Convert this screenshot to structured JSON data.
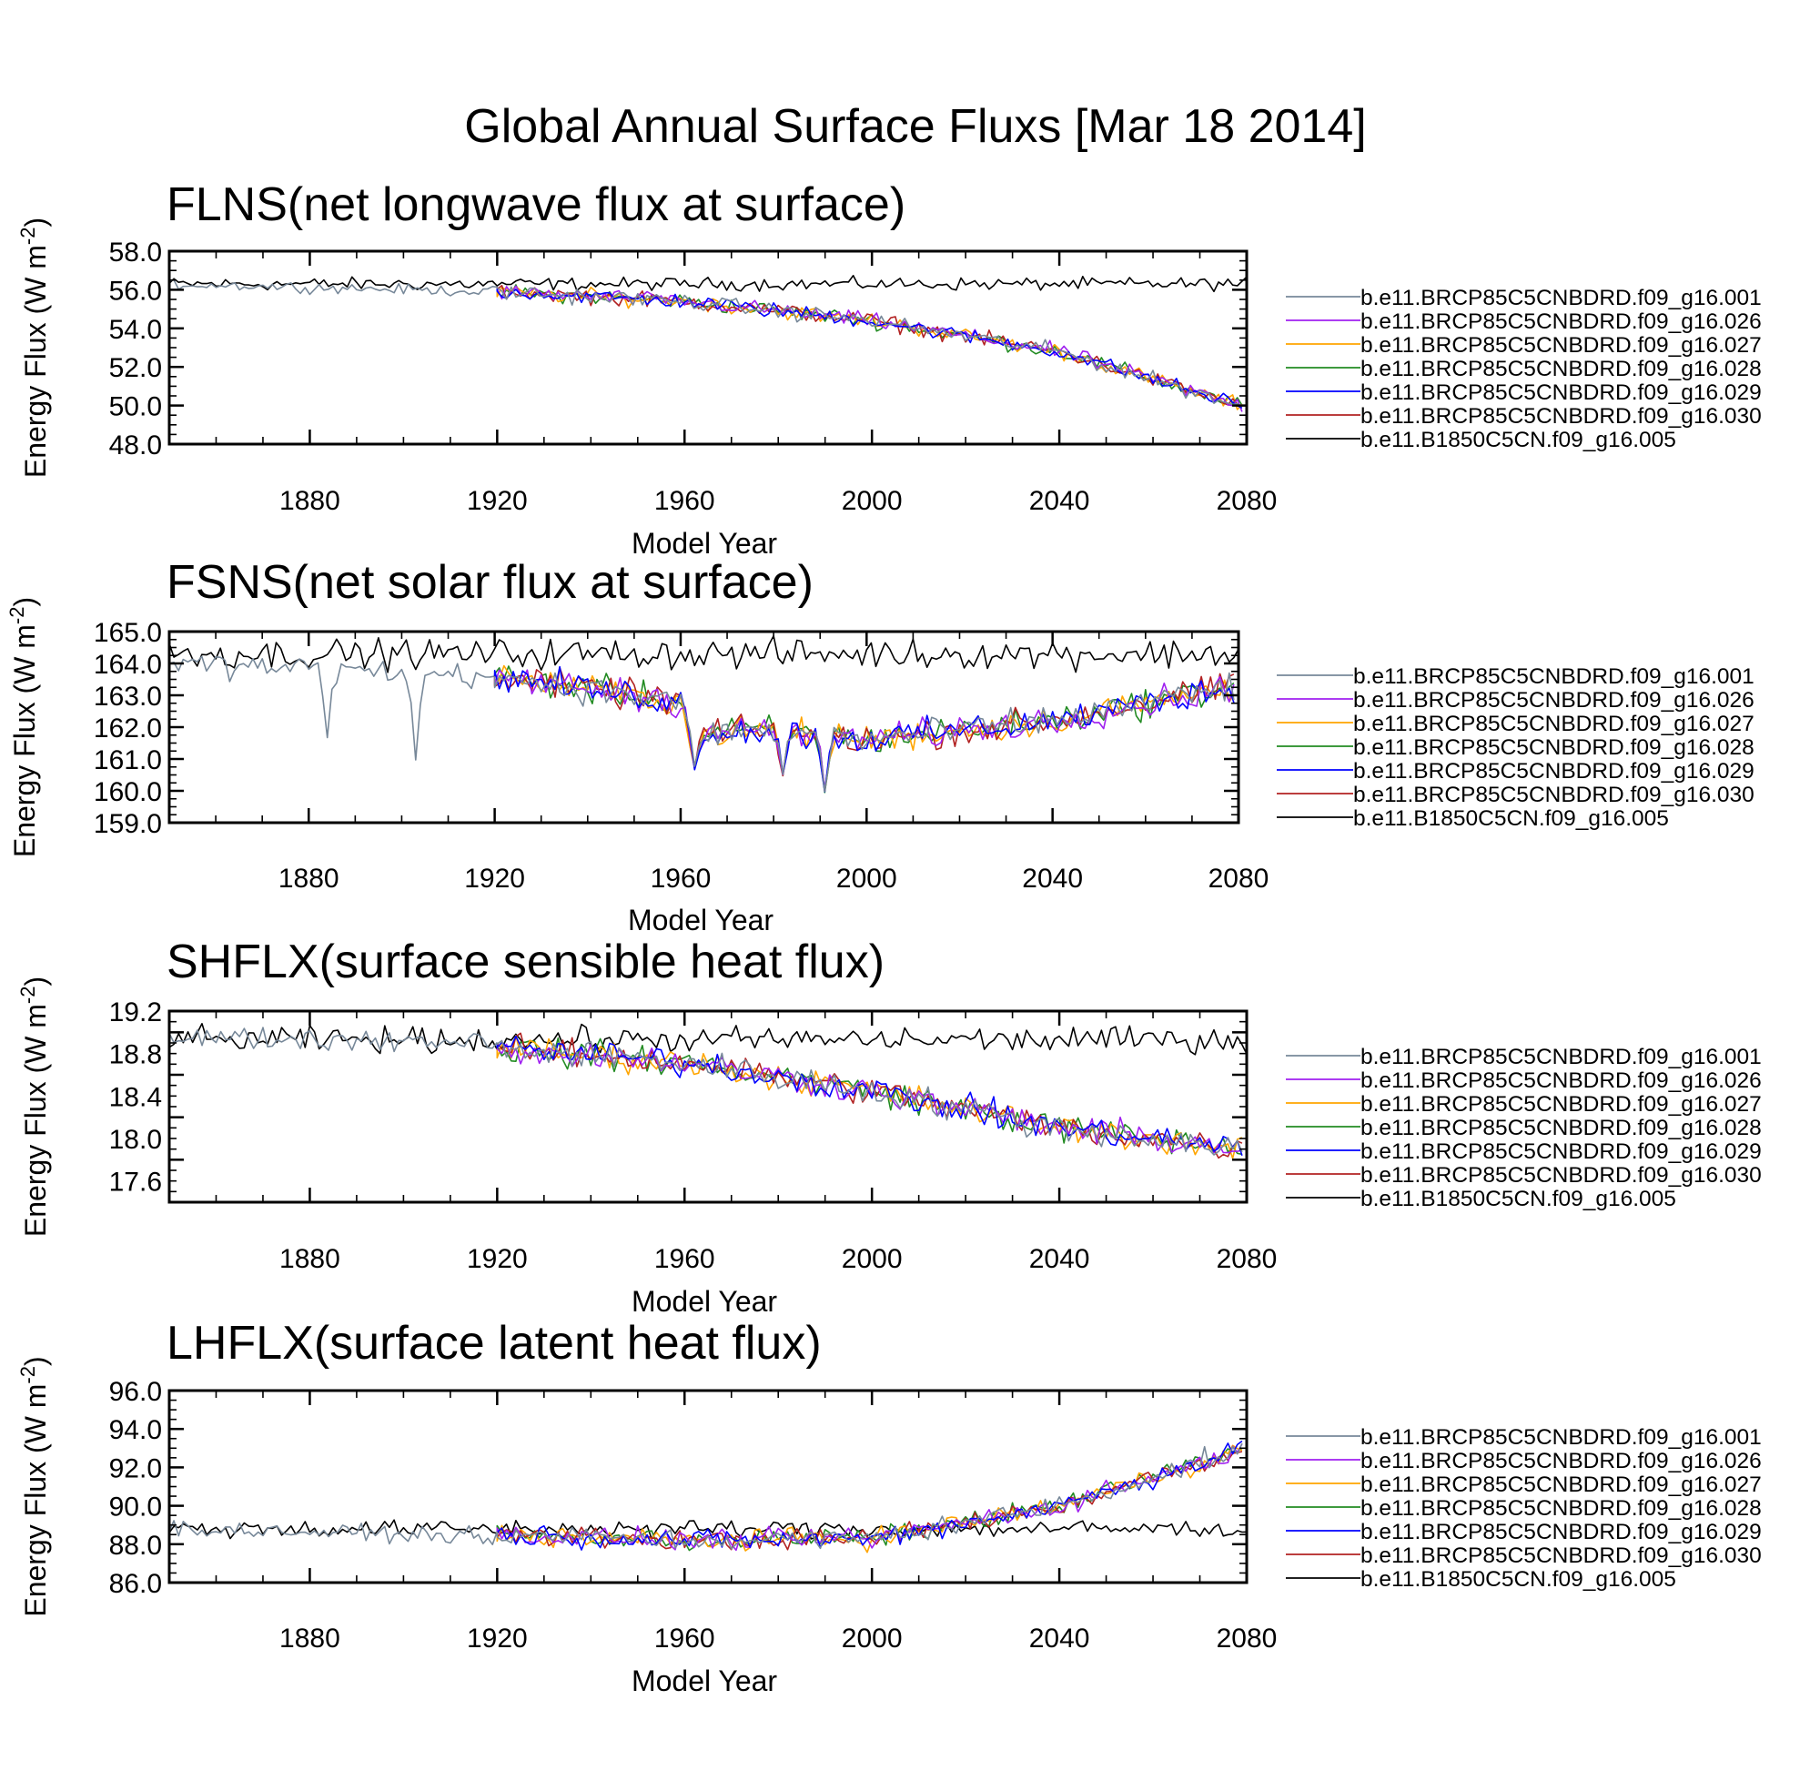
{
  "figure": {
    "title": "Global Annual Surface Fluxs [Mar 18 2014]"
  },
  "legend_entries": [
    {
      "name": "b.e11.BRCP85C5CNBDRD.f09_g16.001",
      "color": "#778899"
    },
    {
      "name": "b.e11.BRCP85C5CNBDRD.f09_g16.026",
      "color": "#a020f0"
    },
    {
      "name": "b.e11.BRCP85C5CNBDRD.f09_g16.027",
      "color": "#ffa500"
    },
    {
      "name": "b.e11.BRCP85C5CNBDRD.f09_g16.028",
      "color": "#228b22"
    },
    {
      "name": "b.e11.BRCP85C5CNBDRD.f09_g16.029",
      "color": "#0000ff"
    },
    {
      "name": "b.e11.BRCP85C5CNBDRD.f09_g16.030",
      "color": "#b22222"
    },
    {
      "name": "b.e11.B1850C5CN.f09_g16.005",
      "color": "#000000"
    }
  ],
  "chart_data": [
    {
      "type": "line",
      "title": "FLNS(net longwave flux at surface)",
      "xlabel": "Model Year",
      "ylabel": "Energy Flux (W m",
      "ylabel_sup": "-2",
      "ylabel_end": ")",
      "xlim": [
        1850,
        2080
      ],
      "ylim": [
        48.0,
        58.0
      ],
      "xticks": [
        1880,
        1920,
        1960,
        2000,
        2040,
        2080
      ],
      "yticks": [
        "58.0",
        "56.0",
        "54.0",
        "52.0",
        "50.0",
        "48.0"
      ],
      "ytick_values": [
        58,
        56,
        54,
        52,
        50,
        48
      ],
      "control": {
        "name": "b.e11.B1850C5CN.f09_g16.005",
        "years": [
          1850,
          2080
        ],
        "mean": [
          56.3,
          56.3
        ],
        "noise": 0.25
      },
      "historical": {
        "name": "b.e11.BRCP85C5CNBDRD.f09_g16.001",
        "years": [
          1850,
          1920
        ],
        "mean": [
          56.3,
          55.9
        ],
        "noise": 0.2
      },
      "ensemble": {
        "years": [
          1920,
          1960,
          2000,
          2040,
          2080
        ],
        "mean": [
          55.9,
          55.4,
          54.4,
          52.8,
          49.9
        ],
        "noise": 0.3
      }
    },
    {
      "type": "line",
      "title": "FSNS(net solar flux at surface)",
      "xlabel": "Model Year",
      "ylabel": "Energy Flux (W m",
      "ylabel_sup": "-2",
      "ylabel_end": ")",
      "xlim": [
        1850,
        2080
      ],
      "ylim": [
        159.0,
        165.0
      ],
      "xticks": [
        1880,
        1920,
        1960,
        2000,
        2040,
        2080
      ],
      "yticks": [
        "165.0",
        "164.0",
        "163.0",
        "162.0",
        "161.0",
        "160.0",
        "159.0"
      ],
      "ytick_values": [
        165,
        164,
        163,
        162,
        161,
        160,
        159
      ],
      "control": {
        "name": "b.e11.B1850C5CN.f09_g16.005",
        "years": [
          1850,
          2080
        ],
        "mean": [
          164.3,
          164.3
        ],
        "noise": 0.35
      },
      "historical": {
        "name": "b.e11.BRCP85C5CNBDRD.f09_g16.001",
        "years": [
          1850,
          1920
        ],
        "mean": [
          164.0,
          163.6
        ],
        "noise": 0.3,
        "dips": [
          [
            1884,
            161.7
          ],
          [
            1903,
            160.9
          ]
        ]
      },
      "ensemble": {
        "years": [
          1920,
          1960,
          1963,
          1980,
          2000,
          2040,
          2080
        ],
        "mean": [
          163.6,
          162.8,
          161.8,
          161.9,
          161.6,
          162.2,
          163.3
        ],
        "noise": 0.35,
        "dips": [
          [
            1963,
            160.7
          ],
          [
            1982,
            160.5
          ],
          [
            1991,
            160.0
          ]
        ]
      }
    },
    {
      "type": "line",
      "title": "SHFLX(surface sensible heat flux)",
      "xlabel": "Model Year",
      "ylabel": "Energy Flux (W m",
      "ylabel_sup": "-2",
      "ylabel_end": ")",
      "xlim": [
        1850,
        2080
      ],
      "ylim": [
        17.4,
        19.2
      ],
      "xticks": [
        1880,
        1920,
        1960,
        2000,
        2040,
        2080
      ],
      "yticks": [
        "19.2",
        "18.8",
        "18.4",
        "18.0",
        "17.6"
      ],
      "ytick_values": [
        19.2,
        18.8,
        18.4,
        18.0,
        17.6
      ],
      "control": {
        "name": "b.e11.B1850C5CN.f09_g16.005",
        "years": [
          1850,
          2080
        ],
        "mean": [
          18.93,
          18.93
        ],
        "noise": 0.09
      },
      "historical": {
        "name": "b.e11.BRCP85C5CNBDRD.f09_g16.001",
        "years": [
          1850,
          1920
        ],
        "mean": [
          18.95,
          18.92
        ],
        "noise": 0.08
      },
      "ensemble": {
        "years": [
          1920,
          1960,
          2000,
          2040,
          2080
        ],
        "mean": [
          18.85,
          18.72,
          18.45,
          18.1,
          17.9
        ],
        "noise": 0.1
      }
    },
    {
      "type": "line",
      "title": "LHFLX(surface latent heat flux)",
      "xlabel": "Model Year",
      "ylabel": "Energy Flux (W m",
      "ylabel_sup": "-2",
      "ylabel_end": ")",
      "xlim": [
        1850,
        2080
      ],
      "ylim": [
        86.0,
        96.0
      ],
      "xticks": [
        1880,
        1920,
        1960,
        2000,
        2040,
        2080
      ],
      "yticks": [
        "96.0",
        "94.0",
        "92.0",
        "90.0",
        "88.0",
        "86.0"
      ],
      "ytick_values": [
        96,
        94,
        92,
        90,
        88,
        86
      ],
      "control": {
        "name": "b.e11.B1850C5CN.f09_g16.005",
        "years": [
          1850,
          2080
        ],
        "mean": [
          88.8,
          88.8
        ],
        "noise": 0.35
      },
      "historical": {
        "name": "b.e11.BRCP85C5CNBDRD.f09_g16.001",
        "years": [
          1850,
          1920
        ],
        "mean": [
          88.8,
          88.4
        ],
        "noise": 0.3
      },
      "ensemble": {
        "years": [
          1920,
          1960,
          2000,
          2040,
          2080
        ],
        "mean": [
          88.5,
          88.2,
          88.3,
          90.0,
          93.0
        ],
        "noise": 0.4
      }
    }
  ]
}
